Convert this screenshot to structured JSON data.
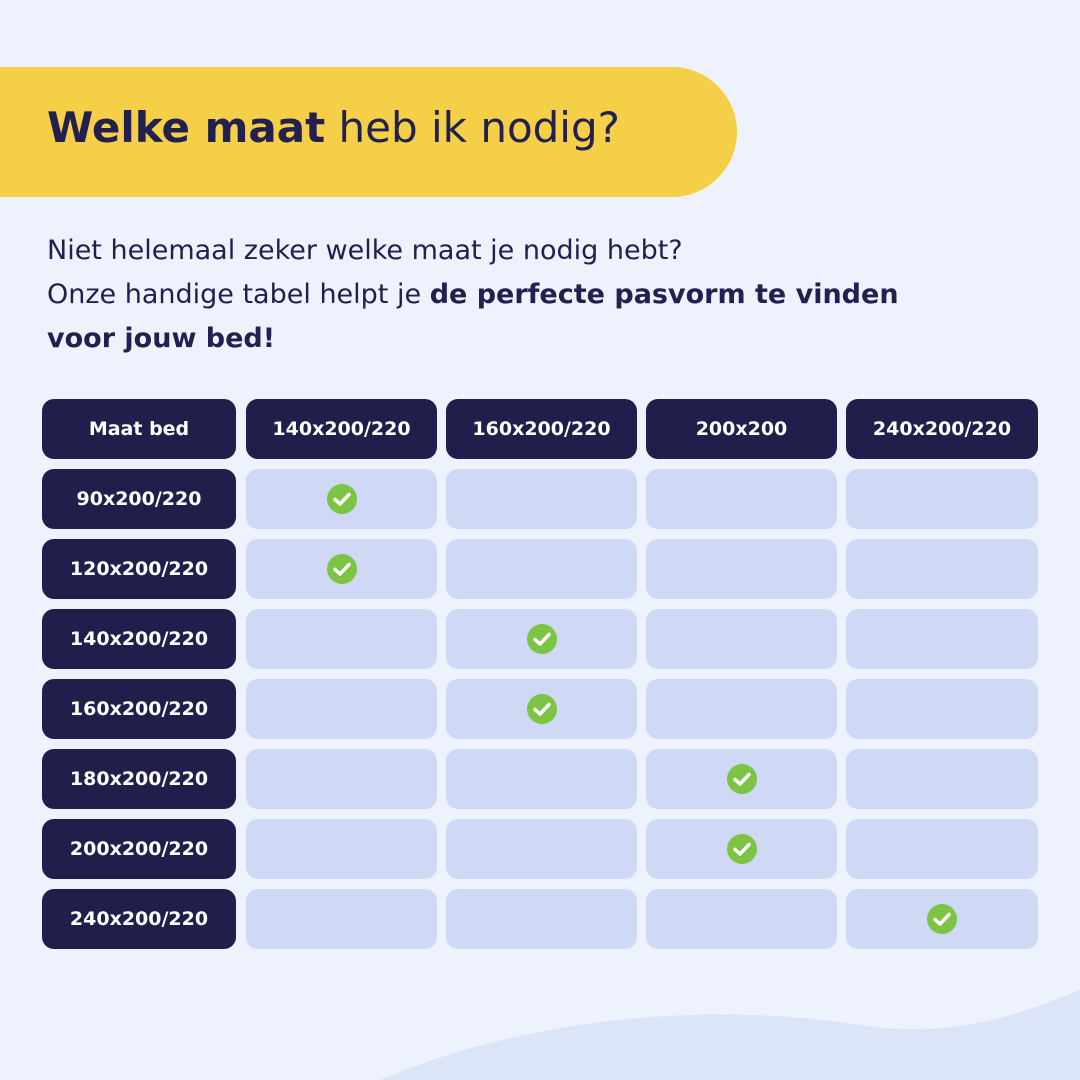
{
  "header": {
    "title_bold": "Welke maat",
    "title_rest": "heb ik nodig?"
  },
  "intro": {
    "line1": "Niet helemaal zeker welke maat je nodig hebt?",
    "line2": "Onze handige tabel helpt je",
    "emphasis": "de perfecte pasvorm te vinden voor jouw bed!"
  },
  "table": {
    "columns": [
      "Maat bed",
      "140x200/220",
      "160x200/220",
      "200x200",
      "240x200/220"
    ],
    "rows": [
      {
        "size": "90x200/220",
        "fits": [
          true,
          false,
          false,
          false
        ]
      },
      {
        "size": "120x200/220",
        "fits": [
          true,
          false,
          false,
          false
        ]
      },
      {
        "size": "140x200/220",
        "fits": [
          false,
          true,
          false,
          false
        ]
      },
      {
        "size": "160x200/220",
        "fits": [
          false,
          true,
          false,
          false
        ]
      },
      {
        "size": "180x200/220",
        "fits": [
          false,
          false,
          true,
          false
        ]
      },
      {
        "size": "200x200/220",
        "fits": [
          false,
          false,
          true,
          false
        ]
      },
      {
        "size": "240x200/220",
        "fits": [
          false,
          false,
          false,
          true
        ]
      }
    ]
  }
}
